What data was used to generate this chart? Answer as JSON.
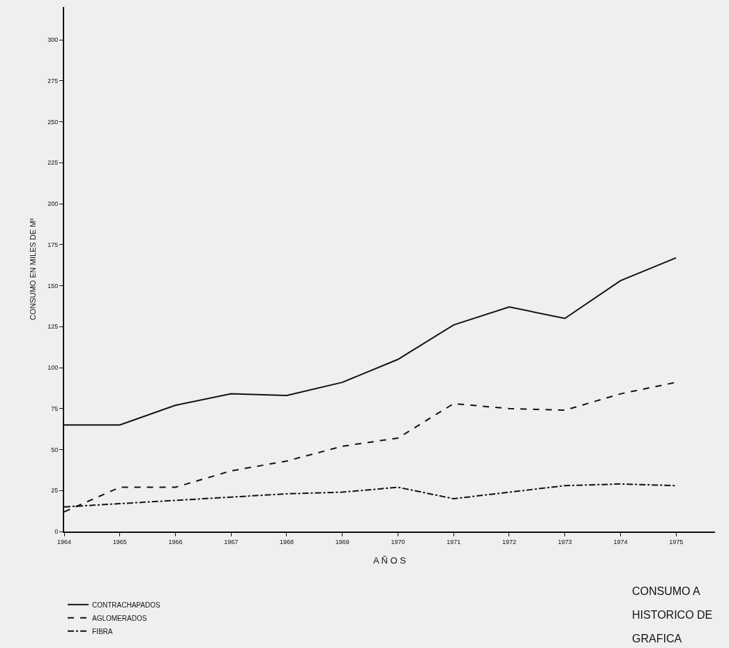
{
  "chart_data": {
    "type": "line",
    "xlabel": "A Ñ O S",
    "ylabel": "CONSUMO EN MILES DE M³",
    "x": [
      1964,
      1965,
      1966,
      1967,
      1968,
      1969,
      1970,
      1971,
      1972,
      1973,
      1974,
      1975
    ],
    "series": [
      {
        "name": "CONTRACHAPADOS",
        "color": "#111111",
        "line_style": "solid",
        "values": [
          65,
          65,
          77,
          84,
          83,
          91,
          105,
          126,
          137,
          130,
          153,
          167
        ]
      },
      {
        "name": "AGLOMERADOS",
        "color": "#111111",
        "line_style": "dashed",
        "values": [
          12,
          27,
          27,
          37,
          43,
          52,
          57,
          78,
          75,
          74,
          84,
          91
        ]
      },
      {
        "name": "FIBRA",
        "color": "#111111",
        "line_style": "dashdot",
        "values": [
          15,
          17,
          19,
          21,
          23,
          24,
          27,
          20,
          24,
          28,
          29,
          28
        ]
      }
    ],
    "xlim": [
      1964,
      1975.7
    ],
    "xticks": [
      1964,
      1965,
      1966,
      1967,
      1968,
      1969,
      1970,
      1971,
      1972,
      1973,
      1974,
      1975
    ],
    "ylim": [
      0,
      320
    ],
    "yticks": [
      0,
      25,
      50,
      75,
      100,
      125,
      150,
      175,
      200,
      225,
      250,
      275,
      300
    ],
    "grid": false,
    "legend": "bottom left",
    "marker": "none",
    "annotations": [
      "CONSUMO A",
      "HISTORICO DE",
      "GRAFICA"
    ]
  }
}
